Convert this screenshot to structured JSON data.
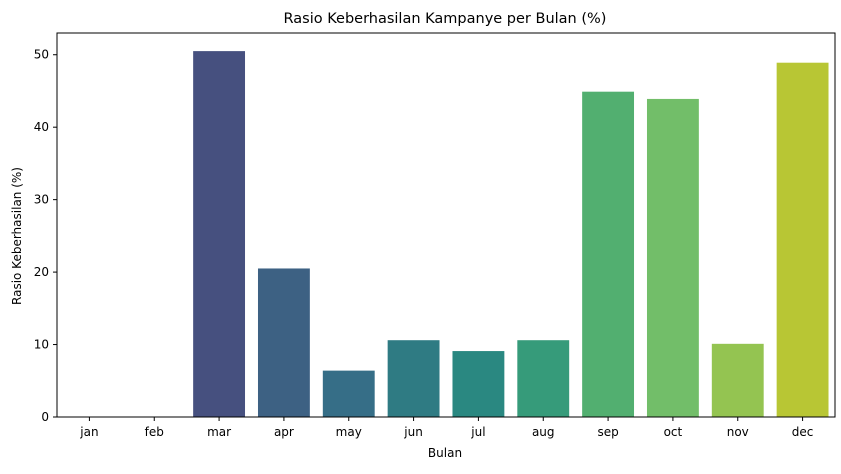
{
  "chart_data": {
    "type": "bar",
    "title": "Rasio Keberhasilan Kampanye per Bulan (%)",
    "xlabel": "Bulan",
    "ylabel": "Rasio Keberhasilan (%)",
    "categories": [
      "jan",
      "feb",
      "mar",
      "apr",
      "may",
      "jun",
      "jul",
      "aug",
      "sep",
      "oct",
      "nov",
      "dec"
    ],
    "values": [
      0,
      0,
      50.5,
      20.5,
      6.4,
      10.6,
      9.1,
      10.6,
      44.9,
      43.9,
      10.1,
      48.9
    ],
    "colors": [
      "#482878",
      "#472d7b",
      "#46507f",
      "#3d6183",
      "#366e87",
      "#2f7b83",
      "#2a8881",
      "#369b7a",
      "#52af70",
      "#72be69",
      "#94c451",
      "#b8c634"
    ],
    "ylim": [
      0,
      53
    ],
    "yticks": [
      0,
      10,
      20,
      30,
      40,
      50
    ],
    "grid": false,
    "legend": "none"
  }
}
